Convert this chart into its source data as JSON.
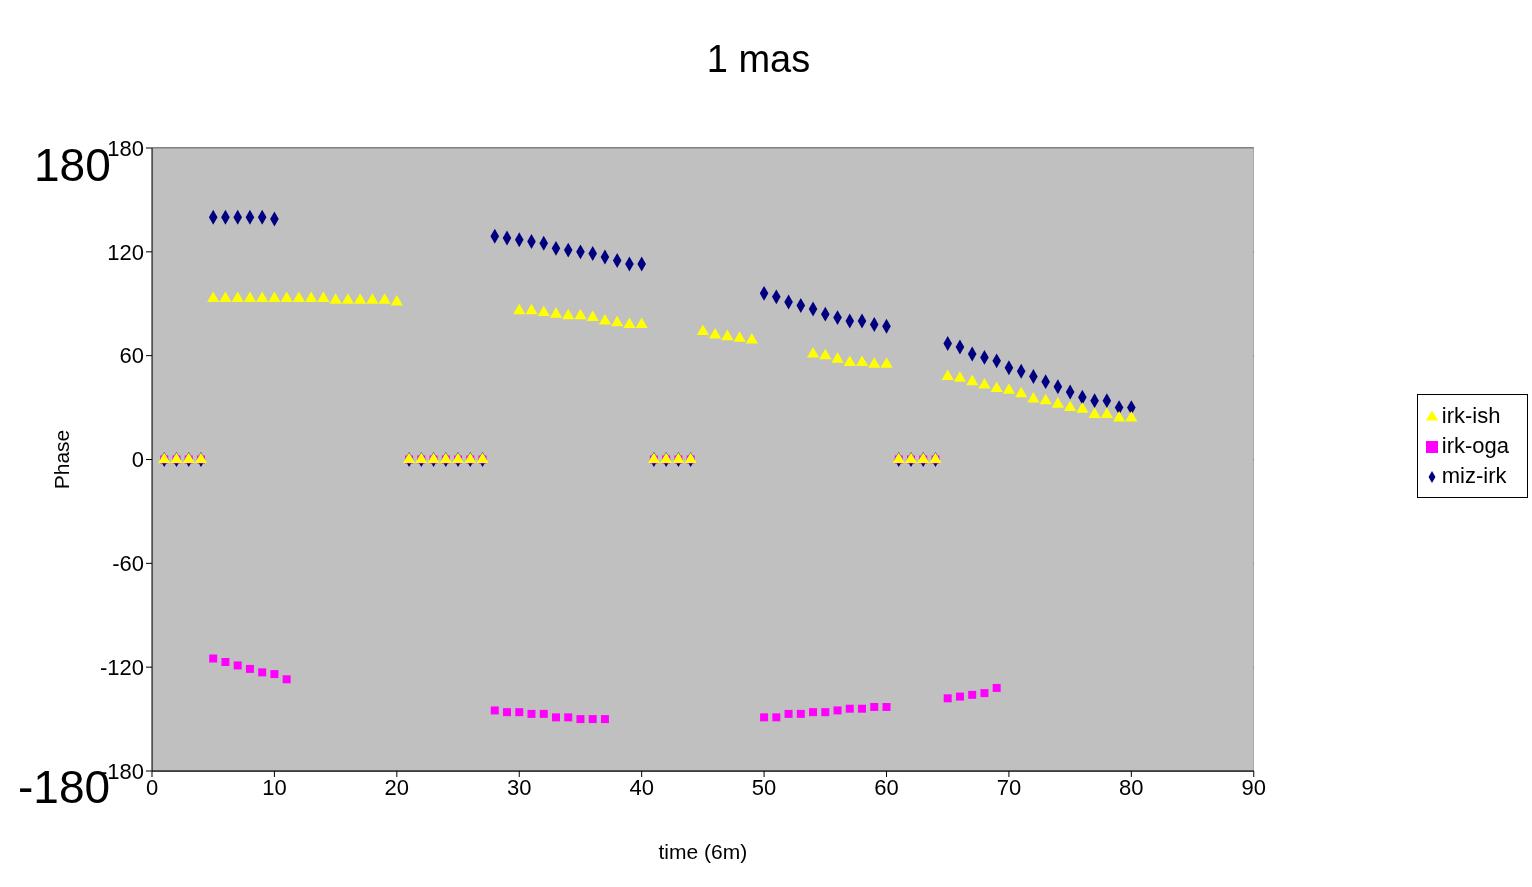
{
  "chart_data": {
    "type": "scatter",
    "title": "1 mas",
    "xlabel": "time (6m)",
    "ylabel": "Phase",
    "annotations": [
      "180",
      "-180"
    ],
    "xlim": [
      0,
      90
    ],
    "xticks": [
      0,
      10,
      20,
      30,
      40,
      50,
      60,
      70,
      80,
      90
    ],
    "ylim": [
      -180,
      180
    ],
    "yticks": [
      -180,
      -120,
      -60,
      0,
      60,
      120,
      180
    ],
    "grid": "y",
    "legend": "right",
    "series": [
      {
        "name": "miz-irk",
        "color": "#000080",
        "marker": "diamond",
        "x": [
          1,
          2,
          3,
          4,
          5,
          6,
          7,
          8,
          9,
          10,
          21,
          22,
          23,
          24,
          25,
          26,
          27,
          28,
          29,
          30,
          31,
          32,
          33,
          34,
          35,
          36,
          37,
          38,
          39,
          40,
          41,
          42,
          43,
          44,
          50,
          51,
          52,
          53,
          54,
          55,
          56,
          57,
          58,
          59,
          60,
          61,
          62,
          63,
          64,
          65,
          66,
          67,
          68,
          69,
          70,
          71,
          72,
          73,
          74,
          75,
          76,
          77,
          78,
          79,
          80
        ],
        "values": [
          0,
          0,
          0,
          0,
          140,
          140,
          140,
          140,
          140,
          139,
          0,
          0,
          0,
          0,
          0,
          0,
          0,
          129,
          128,
          127,
          126,
          125,
          122,
          121,
          120,
          119,
          117,
          115,
          113,
          113,
          0,
          0,
          0,
          0,
          96,
          94,
          91,
          89,
          87,
          84,
          82,
          80,
          80,
          78,
          77,
          0,
          0,
          0,
          0,
          67,
          65,
          61,
          59,
          57,
          53,
          51,
          48,
          45,
          42,
          39,
          36,
          34,
          34,
          30,
          30
        ]
      },
      {
        "name": "irk-oga",
        "color": "#ff00ff",
        "marker": "square",
        "x": [
          1,
          2,
          3,
          4,
          5,
          6,
          7,
          8,
          9,
          10,
          11,
          21,
          22,
          23,
          24,
          25,
          26,
          27,
          28,
          29,
          30,
          31,
          32,
          33,
          34,
          35,
          36,
          37,
          41,
          42,
          43,
          44,
          50,
          51,
          52,
          53,
          54,
          55,
          56,
          57,
          58,
          59,
          60,
          61,
          62,
          63,
          64,
          65,
          66,
          67,
          68,
          69
        ],
        "values": [
          0,
          0,
          0,
          0,
          -115,
          -117,
          -119,
          -121,
          -123,
          -124,
          -127,
          0,
          0,
          0,
          0,
          0,
          0,
          0,
          -145,
          -146,
          -146,
          -147,
          -147,
          -149,
          -149,
          -150,
          -150,
          -150,
          0,
          0,
          0,
          0,
          -149,
          -149,
          -147,
          -147,
          -146,
          -146,
          -145,
          -144,
          -144,
          -143,
          -143,
          0,
          0,
          0,
          0,
          -138,
          -137,
          -136,
          -135,
          -132
        ]
      },
      {
        "name": "irk-ish",
        "color": "#ffff00",
        "marker": "triangle",
        "x": [
          1,
          2,
          3,
          4,
          5,
          6,
          7,
          8,
          9,
          10,
          11,
          12,
          13,
          14,
          15,
          16,
          17,
          18,
          19,
          20,
          21,
          22,
          23,
          24,
          25,
          26,
          27,
          30,
          31,
          32,
          33,
          34,
          35,
          36,
          37,
          38,
          39,
          40,
          41,
          42,
          43,
          44,
          45,
          46,
          47,
          48,
          49,
          54,
          55,
          56,
          57,
          58,
          59,
          60,
          61,
          62,
          63,
          64,
          65,
          66,
          67,
          68,
          69,
          70,
          71,
          72,
          73,
          74,
          75,
          76,
          77,
          78,
          79,
          80
        ],
        "values": [
          0,
          0,
          0,
          0,
          93,
          93,
          93,
          93,
          93,
          93,
          93,
          93,
          93,
          93,
          92,
          92,
          92,
          92,
          92,
          91,
          0,
          0,
          0,
          0,
          0,
          0,
          0,
          86,
          86,
          85,
          84,
          83,
          83,
          82,
          80,
          79,
          78,
          78,
          0,
          0,
          0,
          0,
          74,
          72,
          71,
          70,
          69,
          61,
          60,
          58,
          56,
          56,
          55,
          55,
          0,
          0,
          0,
          0,
          48,
          47,
          45,
          43,
          41,
          40,
          38,
          35,
          34,
          32,
          30,
          29,
          26,
          26,
          24,
          24
        ]
      }
    ]
  }
}
